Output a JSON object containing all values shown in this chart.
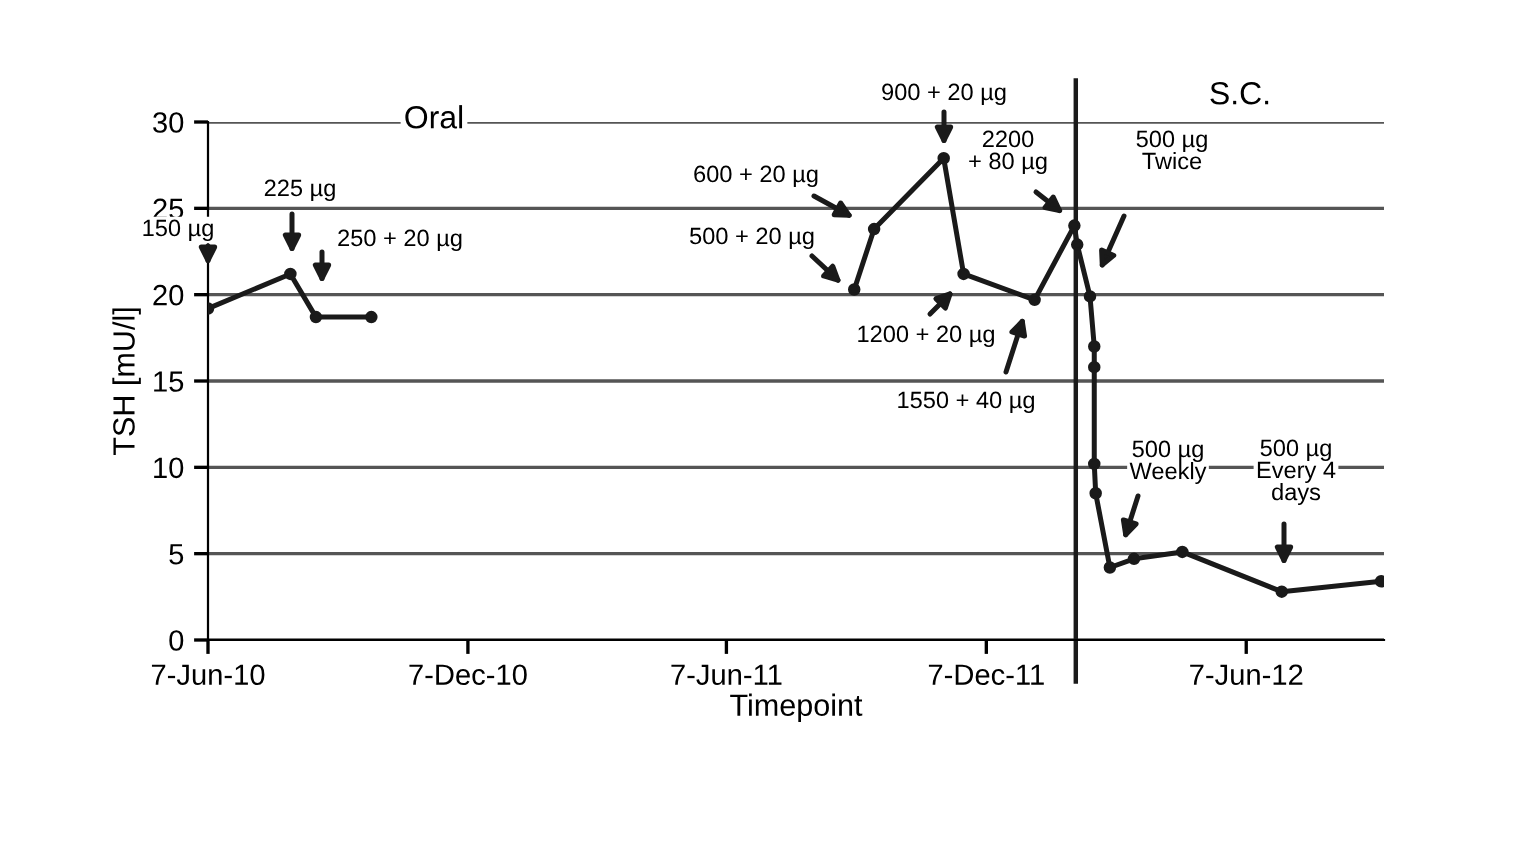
{
  "chart_data": {
    "type": "line",
    "xlabel": "Timepoint",
    "ylabel": "TSH [mU/l]",
    "series": [
      {
        "color": "#1a1a1a",
        "x": [
          "2010-06-07",
          "2010-08-04",
          "2010-08-22",
          "2010-09-30"
        ],
        "values": [
          19.2,
          21.2,
          18.7,
          18.7
        ]
      },
      {
        "color": "#1a1a1a",
        "x": [
          "2011-09-05",
          "2011-09-19",
          "2011-11-07",
          "2011-11-21",
          "2012-01-10",
          "2012-02-07",
          "2012-02-09",
          "2012-02-18",
          "2012-02-21",
          "2012-02-21",
          "2012-02-21",
          "2012-02-22",
          "2012-03-03",
          "2012-03-20",
          "2012-04-23",
          "2012-07-02",
          "2012-09-10"
        ],
        "values": [
          20.3,
          23.8,
          27.9,
          21.2,
          19.7,
          24.0,
          22.9,
          19.9,
          17.0,
          15.8,
          10.2,
          8.5,
          4.2,
          4.7,
          5.1,
          2.8,
          3.4
        ]
      }
    ],
    "marker": "circle",
    "line_style": "solid",
    "xlim": [
      "2010-06-07",
      "2012-09-12"
    ],
    "xticks": [
      {
        "value": "2010-06-07",
        "label": "7-Jun-10"
      },
      {
        "value": "2010-12-07",
        "label": "7-Dec-10"
      },
      {
        "value": "2011-06-07",
        "label": "7-Jun-11"
      },
      {
        "value": "2011-12-07",
        "label": "7-Dec-11"
      },
      {
        "value": "2012-06-07",
        "label": "7-Jun-12"
      }
    ],
    "ylim": [
      0,
      30
    ],
    "yticks": [
      0,
      5,
      10,
      15,
      20,
      25,
      30
    ],
    "grid": "y",
    "ref_lines": [
      {
        "axis": "x",
        "value": "2012-02-08",
        "color": "#1a1a1a"
      }
    ],
    "annotations": [
      "Oral",
      "S.C.",
      "150 µg",
      "225 µg",
      "250 + 20 µg",
      "600 + 20 µg",
      "500 + 20 µg",
      "900 + 20 µg",
      "1200 + 20 µg",
      "1550 + 40 µg",
      "2200\n+ 80 µg",
      "500 µg\nTwice",
      "500 µg\nWeekly",
      "500 µg\nEvery 4\ndays"
    ]
  }
}
